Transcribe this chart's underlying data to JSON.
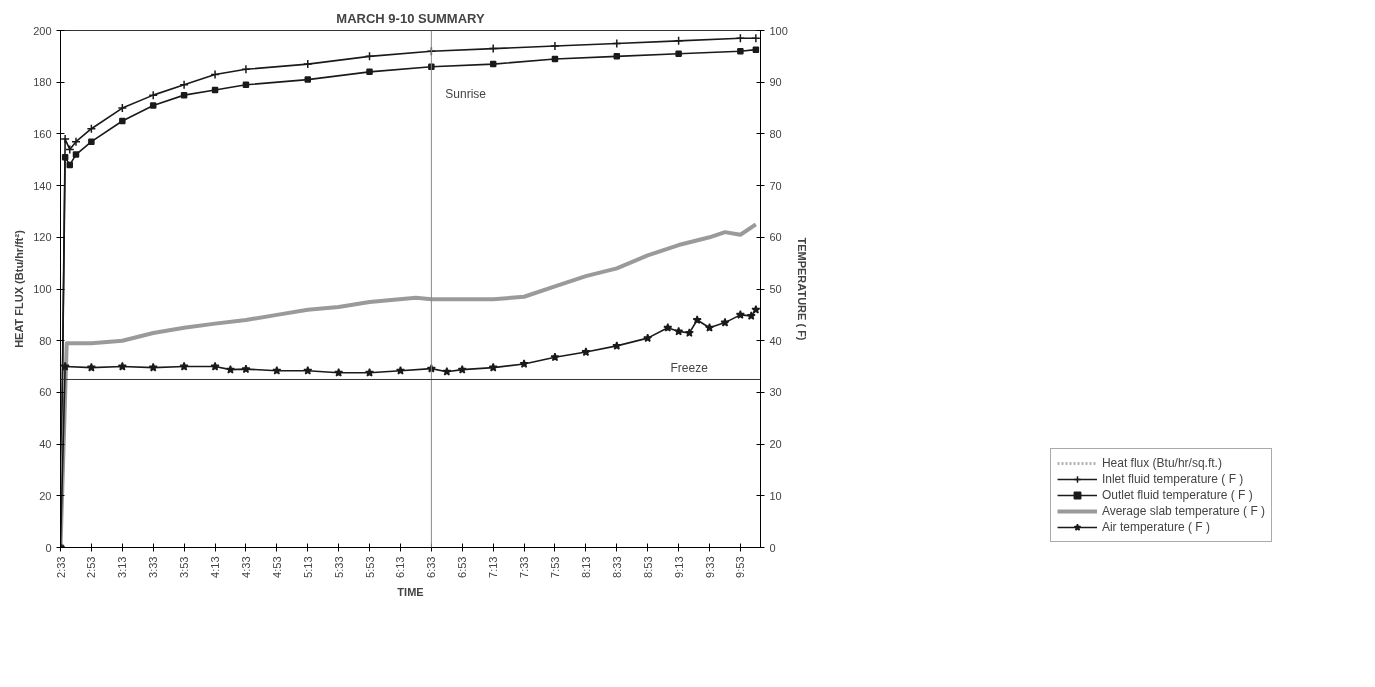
{
  "chart_data": {
    "type": "line",
    "title": "MARCH 9-10 SUMMARY",
    "xlabel": "TIME",
    "ylabel": "HEAT FLUX (Btu/hr/ft²)",
    "y2label": "TEMPERATURE ( F)",
    "xlim": [
      2.55,
      10.1
    ],
    "xticks": [
      {
        "value": 2.55,
        "label": "2:33"
      },
      {
        "value": 2.883,
        "label": "2:53"
      },
      {
        "value": 3.217,
        "label": "3:13"
      },
      {
        "value": 3.55,
        "label": "3:33"
      },
      {
        "value": 3.883,
        "label": "3:53"
      },
      {
        "value": 4.217,
        "label": "4:13"
      },
      {
        "value": 4.55,
        "label": "4:33"
      },
      {
        "value": 4.883,
        "label": "4:53"
      },
      {
        "value": 5.217,
        "label": "5:13"
      },
      {
        "value": 5.55,
        "label": "5:33"
      },
      {
        "value": 5.883,
        "label": "5:53"
      },
      {
        "value": 6.217,
        "label": "6:13"
      },
      {
        "value": 6.55,
        "label": "6:33"
      },
      {
        "value": 6.883,
        "label": "6:53"
      },
      {
        "value": 7.217,
        "label": "7:13"
      },
      {
        "value": 7.55,
        "label": "7:33"
      },
      {
        "value": 7.883,
        "label": "7:53"
      },
      {
        "value": 8.217,
        "label": "8:13"
      },
      {
        "value": 8.55,
        "label": "8:33"
      },
      {
        "value": 8.883,
        "label": "8:53"
      },
      {
        "value": 9.217,
        "label": "9:13"
      },
      {
        "value": 9.55,
        "label": "9:33"
      },
      {
        "value": 9.883,
        "label": "9:53"
      }
    ],
    "ylim": [
      0,
      200
    ],
    "yticks": [
      0,
      20,
      40,
      60,
      80,
      100,
      120,
      140,
      160,
      180,
      200
    ],
    "y2lim": [
      0,
      100
    ],
    "y2ticks": [
      0,
      10,
      20,
      30,
      40,
      50,
      60,
      70,
      80,
      90,
      100
    ],
    "grid": false,
    "legend": "bottom right",
    "series": [
      {
        "name": "Heat flux (Btu/hr/sq.ft.)",
        "color": "#b4b4b4",
        "marker": "none"
      },
      {
        "name": "Inlet fluid temperature ( F )",
        "color": "#1a1a1a",
        "marker": "cross",
        "axis": "y2",
        "x": [
          2.55,
          2.6,
          2.65,
          2.717,
          2.883,
          3.217,
          3.55,
          3.883,
          4.217,
          4.55,
          5.217,
          5.883,
          6.55,
          7.217,
          7.883,
          8.55,
          9.217,
          9.883,
          10.05
        ],
        "values": [
          0,
          79,
          77,
          78.5,
          81,
          85,
          87.5,
          89.5,
          91.5,
          92.5,
          93.5,
          95,
          96,
          96.5,
          97,
          97.5,
          98,
          98.5,
          98.5
        ]
      },
      {
        "name": "Outlet fluid temperature ( F )",
        "color": "#1a1a1a",
        "marker": "square",
        "axis": "y2",
        "x": [
          2.55,
          2.6,
          2.65,
          2.717,
          2.883,
          3.217,
          3.55,
          3.883,
          4.217,
          4.55,
          5.217,
          5.883,
          6.55,
          7.217,
          7.883,
          8.55,
          9.217,
          9.883,
          10.05
        ],
        "values": [
          0,
          75.5,
          74,
          76,
          78.5,
          82.5,
          85.5,
          87.5,
          88.5,
          89.5,
          90.5,
          92,
          93,
          93.5,
          94.5,
          95,
          95.5,
          96,
          96.3
        ]
      },
      {
        "name": "Average slab temperature ( F )",
        "color": "#9a9a9a",
        "marker": "none",
        "axis": "y2",
        "x": [
          2.55,
          2.617,
          2.883,
          3.217,
          3.55,
          3.883,
          4.217,
          4.55,
          4.883,
          5.217,
          5.55,
          5.883,
          6.383,
          6.55,
          7.217,
          7.55,
          7.883,
          8.217,
          8.55,
          8.883,
          9.217,
          9.55,
          9.717,
          9.883,
          10.05
        ],
        "values": [
          0,
          39.5,
          39.5,
          40,
          41.5,
          42.5,
          43.3,
          44,
          45,
          46,
          46.5,
          47.5,
          48.3,
          48,
          48,
          48.5,
          50.5,
          52.5,
          54,
          56.5,
          58.5,
          60,
          61,
          60.5,
          62.5
        ]
      },
      {
        "name": "Air temperature ( F )",
        "color": "#1a1a1a",
        "marker": "star",
        "axis": "y2",
        "x": [
          2.55,
          2.6,
          2.883,
          3.217,
          3.55,
          3.883,
          4.217,
          4.383,
          4.55,
          4.883,
          5.217,
          5.55,
          5.883,
          6.217,
          6.55,
          6.717,
          6.883,
          7.217,
          7.55,
          7.883,
          8.217,
          8.55,
          8.883,
          9.1,
          9.217,
          9.333,
          9.417,
          9.55,
          9.717,
          9.883,
          10.0,
          10.05
        ],
        "values": [
          0,
          35,
          34.8,
          35,
          34.8,
          35,
          35,
          34.4,
          34.5,
          34.2,
          34.2,
          33.8,
          33.8,
          34.2,
          34.6,
          34,
          34.4,
          34.8,
          35.5,
          36.8,
          37.8,
          39,
          40.5,
          42.5,
          41.8,
          41.5,
          44,
          42.5,
          43.5,
          45,
          44.8,
          46
        ]
      }
    ],
    "ref_lines": [
      {
        "axis": "x",
        "value": 6.55,
        "label": "Sunrise",
        "color": "#888888"
      },
      {
        "axis": "y2",
        "value": 32.5,
        "label": "Freeze",
        "color": "#333333"
      }
    ]
  }
}
